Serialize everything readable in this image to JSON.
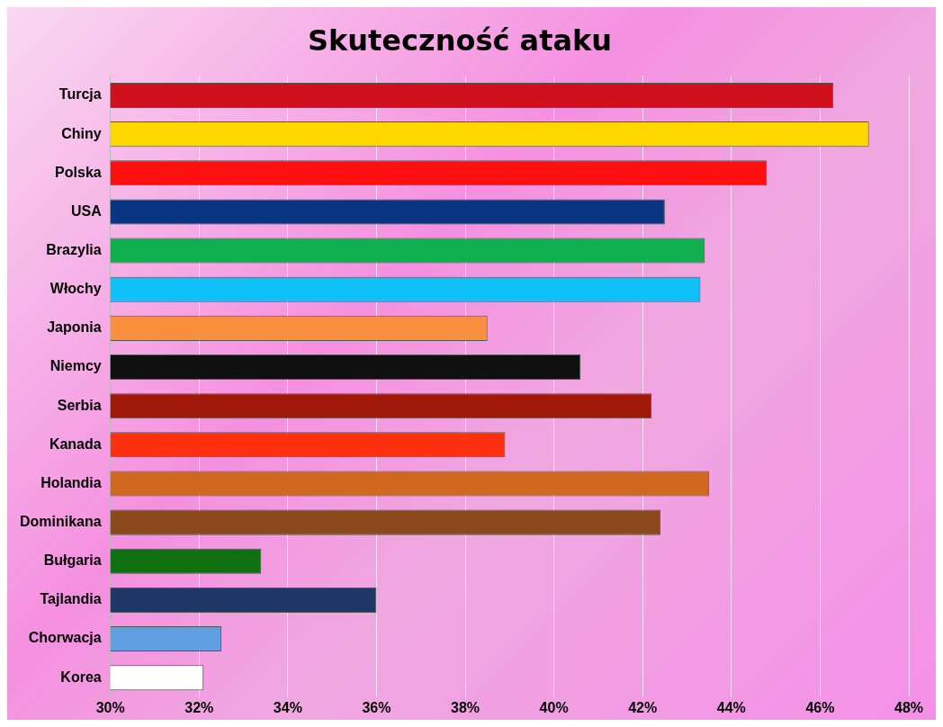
{
  "chart_data": {
    "type": "bar",
    "orientation": "horizontal",
    "title": "Skuteczność ataku",
    "categories": [
      "Turcja",
      "Chiny",
      "Polska",
      "USA",
      "Brazylia",
      "Włochy",
      "Japonia",
      "Niemcy",
      "Serbia",
      "Kanada",
      "Holandia",
      "Dominikana",
      "Bułgaria",
      "Tajlandia",
      "Chorwacja",
      "Korea"
    ],
    "values": [
      46.3,
      47.1,
      44.8,
      42.5,
      43.4,
      43.3,
      38.5,
      40.6,
      42.2,
      38.9,
      43.5,
      42.4,
      33.4,
      36.0,
      32.5,
      32.1
    ],
    "colors": [
      "#d0101c",
      "#ffd700",
      "#ff1010",
      "#0a3580",
      "#10b050",
      "#10c0f8",
      "#f89040",
      "#101010",
      "#a01808",
      "#ff3010",
      "#d06820",
      "#8b4a1c",
      "#107010",
      "#203868",
      "#60a0e0",
      "#ffffff"
    ],
    "xlim": [
      30,
      48
    ],
    "xticks": [
      {
        "value": 30,
        "label": "30%"
      },
      {
        "value": 32,
        "label": "32%"
      },
      {
        "value": 34,
        "label": "34%"
      },
      {
        "value": 36,
        "label": "36%"
      },
      {
        "value": 38,
        "label": "38%"
      },
      {
        "value": 40,
        "label": "40%"
      },
      {
        "value": 42,
        "label": "42%"
      },
      {
        "value": 44,
        "label": "44%"
      },
      {
        "value": 46,
        "label": "46%"
      },
      {
        "value": 48,
        "label": "48%"
      }
    ],
    "grid": "x",
    "legend": false
  }
}
